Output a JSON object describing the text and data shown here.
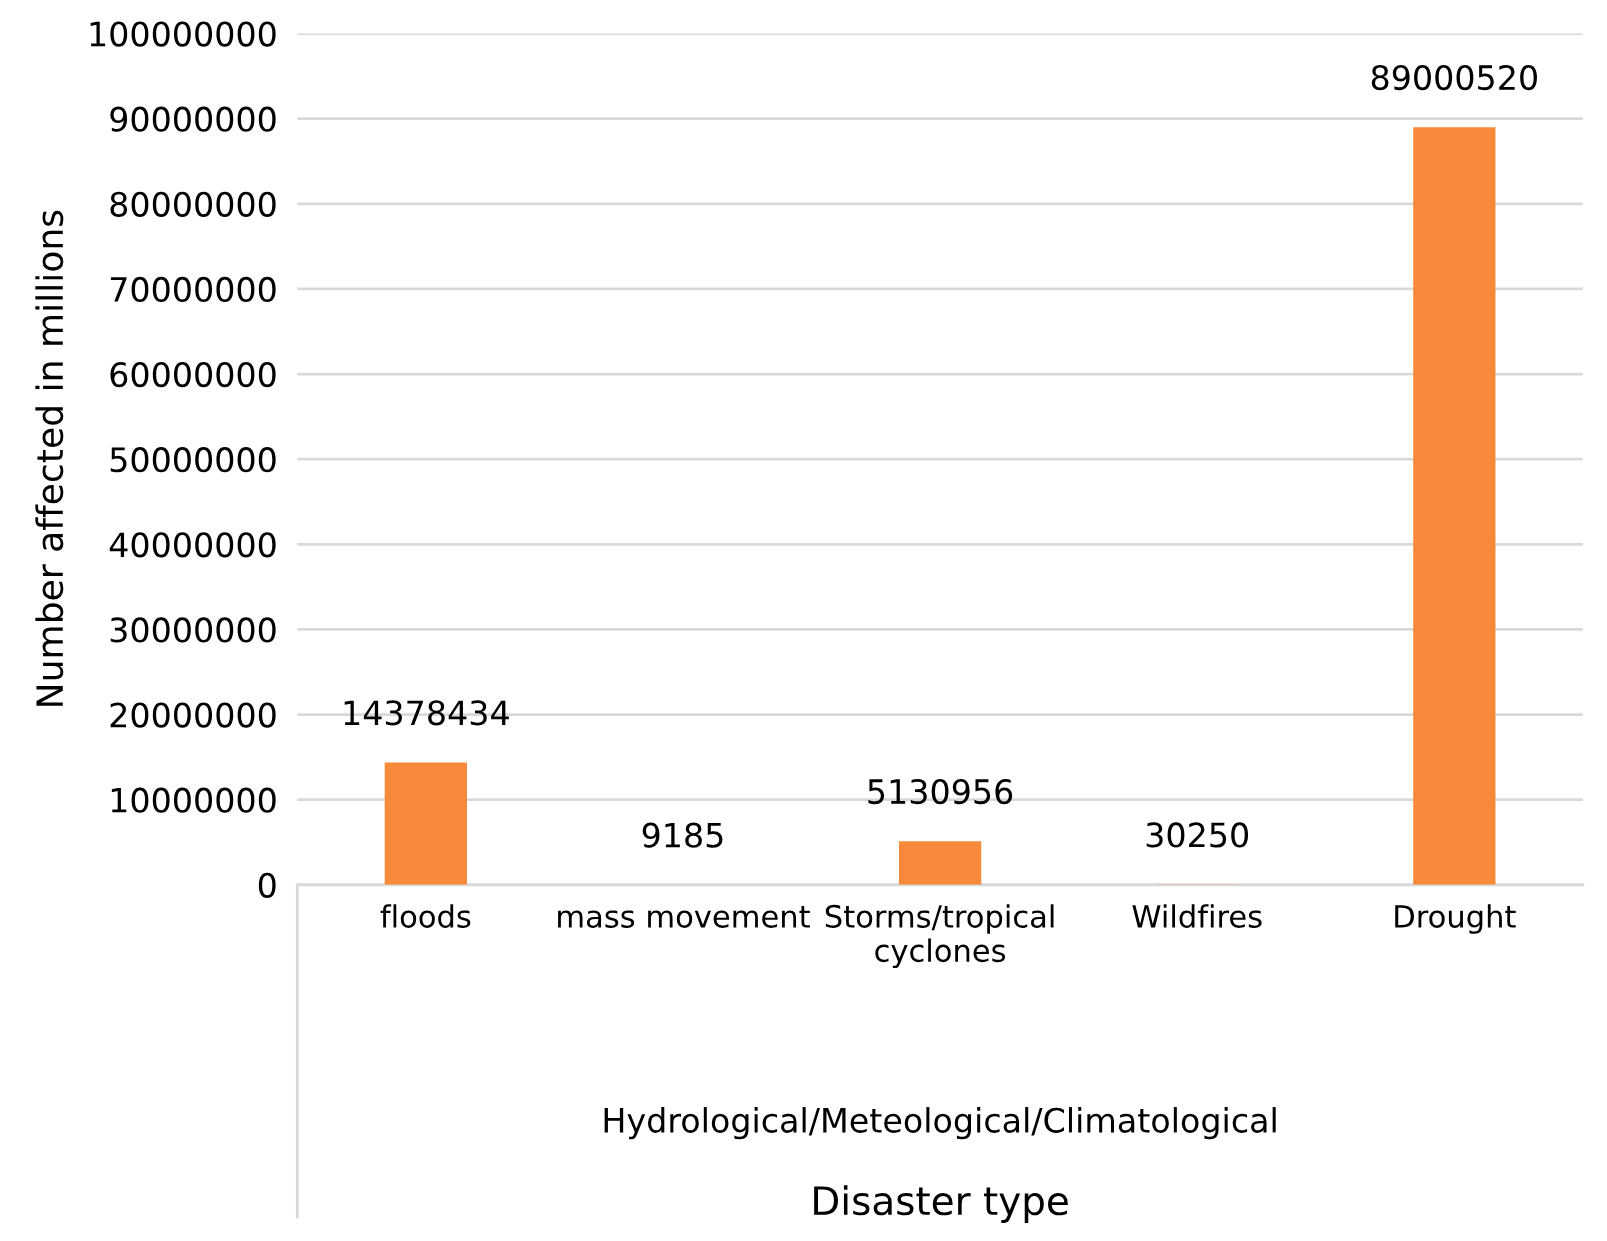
{
  "chart_data": {
    "type": "bar",
    "ylabel": "Number affected in millions",
    "categories": [
      "floods",
      "mass movement",
      "Storms/tropical\ncyclones",
      "Wildfires",
      "Drought"
    ],
    "values": [
      14378434,
      9185,
      5130956,
      30250,
      89000520
    ],
    "color": "#f78a3a",
    "ylim": [
      0,
      100000000
    ],
    "yticks": [
      0,
      10000000,
      20000000,
      30000000,
      40000000,
      50000000,
      60000000,
      70000000,
      80000000,
      90000000,
      100000000
    ],
    "grid": "y",
    "data_labels": true,
    "legend": false,
    "annotations": [
      "Hydrological/Meteological/Climatological",
      "Disaster type"
    ]
  }
}
